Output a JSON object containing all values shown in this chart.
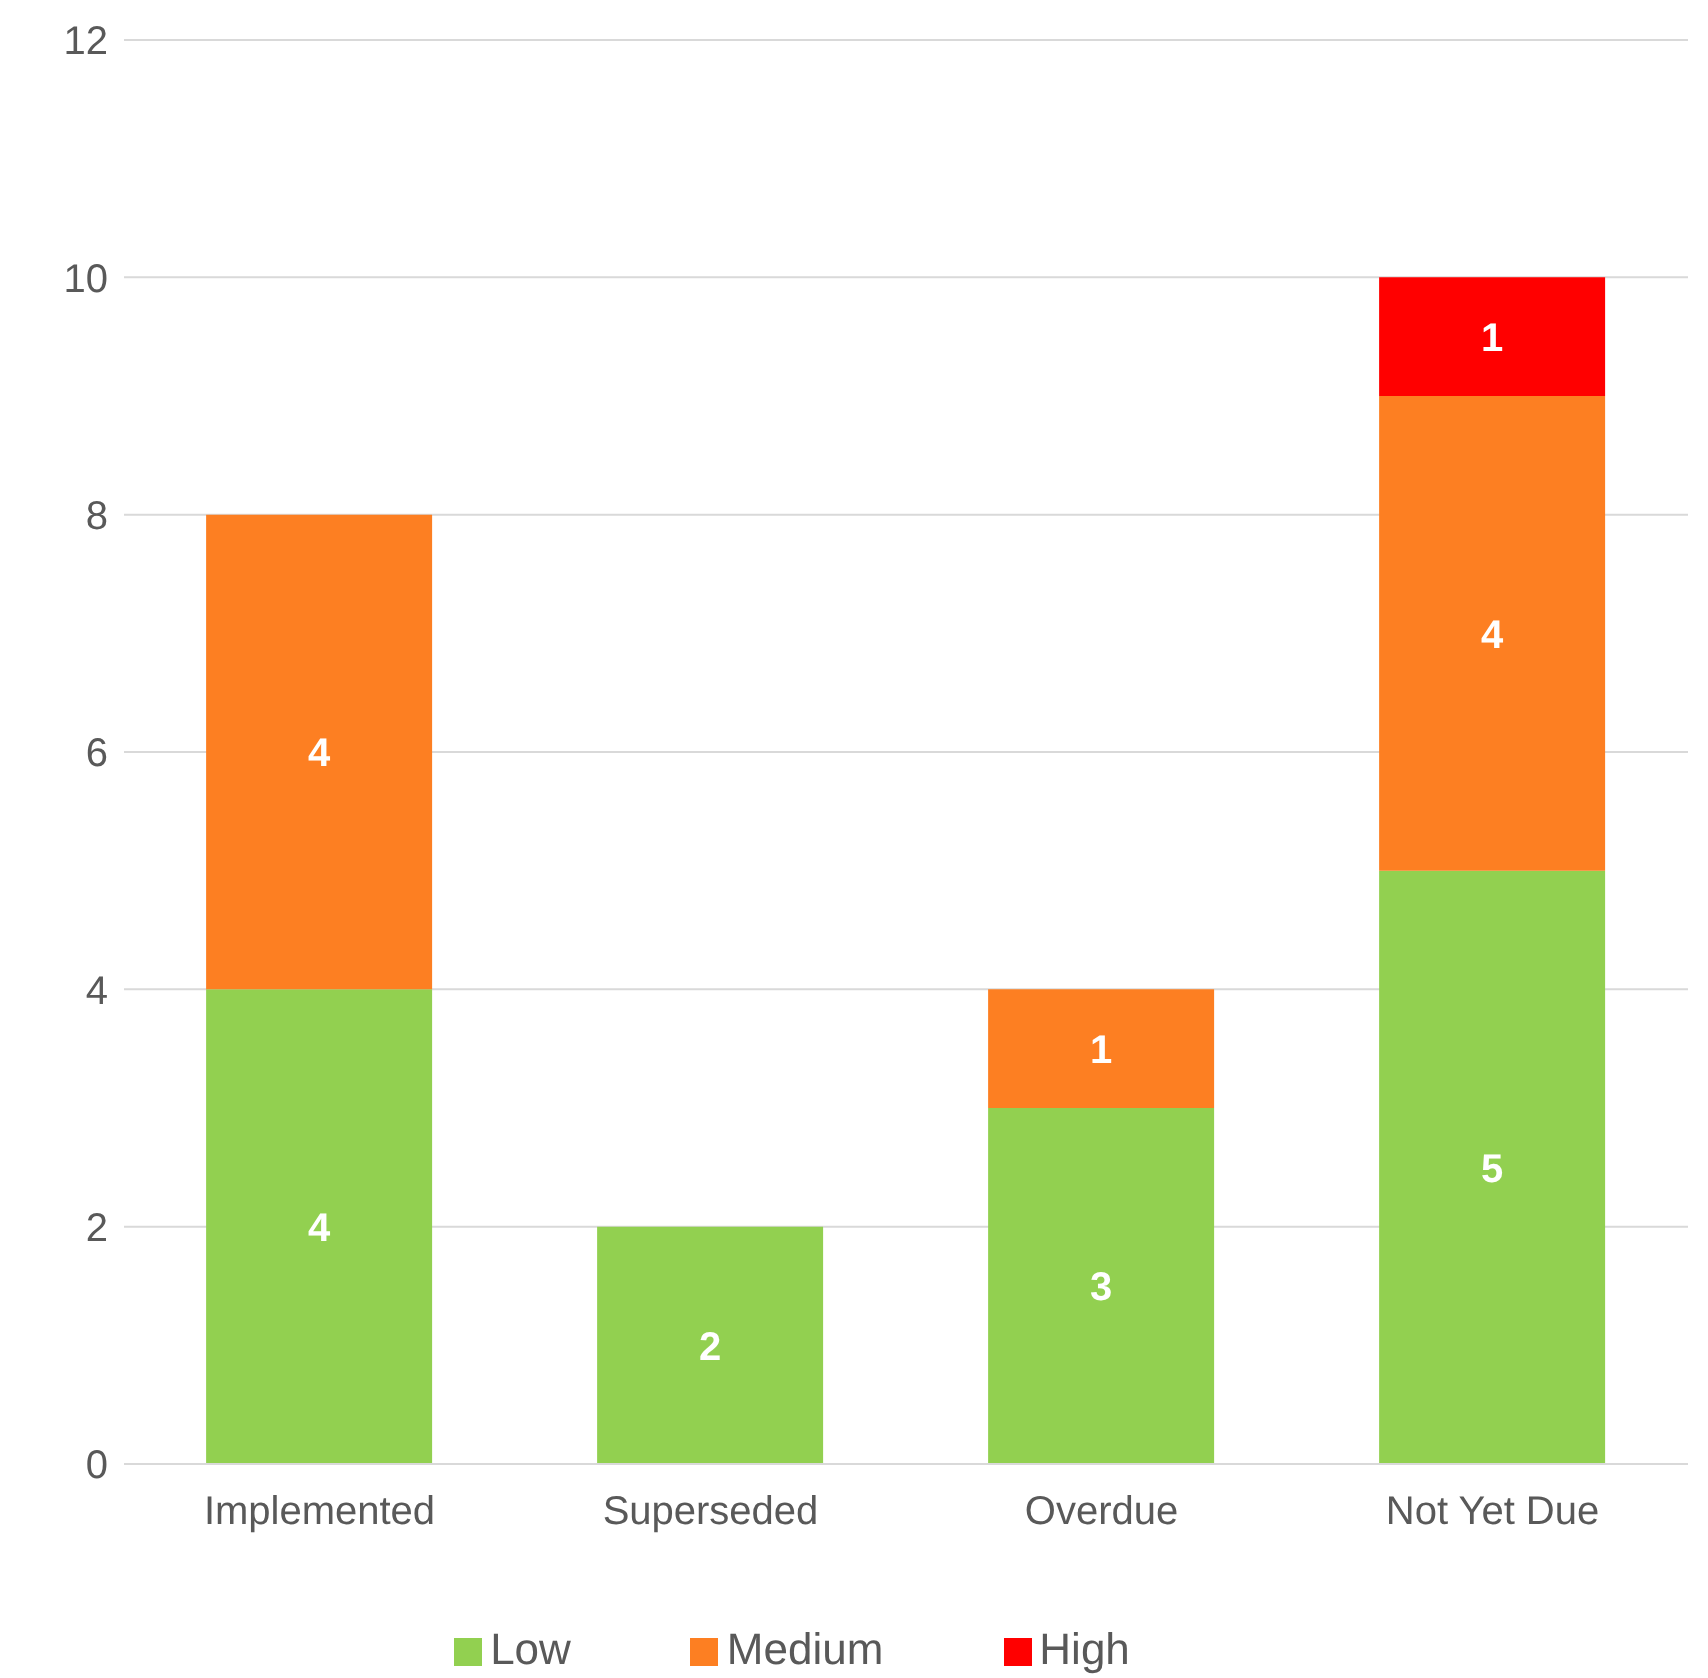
{
  "chart_data": {
    "type": "bar",
    "stacked": true,
    "categories": [
      "Implemented",
      "Superseded",
      "Overdue",
      "Not Yet Due"
    ],
    "series": [
      {
        "name": "Low",
        "color": "#92d050",
        "values": [
          4,
          2,
          3,
          5
        ]
      },
      {
        "name": "Medium",
        "color": "#fd7f22",
        "values": [
          4,
          null,
          1,
          4
        ]
      },
      {
        "name": "High",
        "color": "#ff0000",
        "values": [
          null,
          null,
          null,
          1
        ]
      }
    ],
    "ylim": [
      0,
      12
    ],
    "yticks": [
      0,
      2,
      4,
      6,
      8,
      10,
      12
    ],
    "grid": "y",
    "legend": "bottom",
    "data_labels": true
  }
}
